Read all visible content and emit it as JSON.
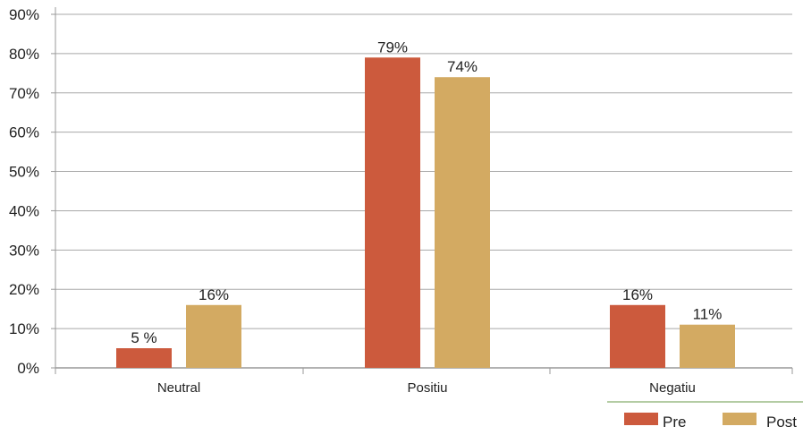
{
  "chart_data": {
    "type": "bar",
    "categories": [
      "Neutral",
      "Positiu",
      "Negatiu"
    ],
    "series": [
      {
        "name": "Pre",
        "values": [
          5,
          79,
          16
        ],
        "labels": [
          "5 %",
          "79%",
          "16%"
        ],
        "color": "#cc5a3d"
      },
      {
        "name": "Post",
        "values": [
          16,
          74,
          11
        ],
        "labels": [
          "16%",
          "74%",
          "11%"
        ],
        "color": "#d3aa62"
      }
    ],
    "ylim": [
      0,
      90
    ],
    "y_ticks": [
      "0%",
      "10%",
      "20%",
      "30%",
      "40%",
      "50%",
      "60%",
      "70%",
      "80%",
      "90%"
    ],
    "grid": true,
    "legend_position": "bottom-right",
    "legend_line_color": "#6a9a4a",
    "grid_color": "#a8a8a8",
    "axis_color": "#999999"
  }
}
